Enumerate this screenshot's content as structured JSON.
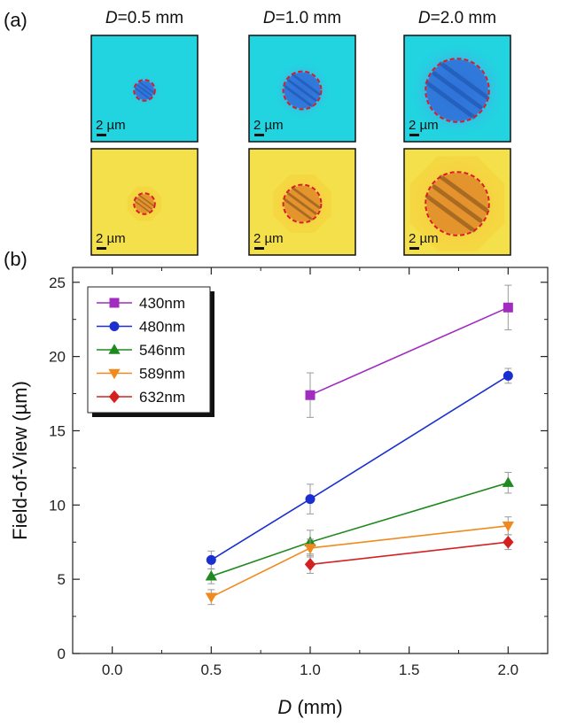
{
  "panel_a": {
    "label": "(a)",
    "columns": [
      {
        "d_italic": "D",
        "d_value": "=0.5 mm",
        "circle_fraction": 0.18
      },
      {
        "d_italic": "D",
        "d_value": "=1.0 mm",
        "circle_fraction": 0.34
      },
      {
        "d_italic": "D",
        "d_value": "=2.0 mm",
        "circle_fraction": 0.58
      }
    ],
    "scale_bar_label": "2 µm",
    "rows": [
      {
        "name": "blue",
        "background": "#22d3e0",
        "spot": "#2f6fd8"
      },
      {
        "name": "yellow",
        "background": "#f4e04a",
        "spot": "#e08a2a"
      }
    ]
  },
  "panel_b": {
    "label": "(b)"
  },
  "chart_data": {
    "type": "line",
    "xlabel_italic": "D",
    "xlabel_rest": " (mm)",
    "ylabel": "Field-of-View  (µm)",
    "xlim": [
      -0.2,
      2.2
    ],
    "ylim": [
      0,
      26
    ],
    "xticks": [
      "0.0",
      "0.5",
      "1.0",
      "1.5",
      "2.0"
    ],
    "xtick_values": [
      0.0,
      0.5,
      1.0,
      1.5,
      2.0
    ],
    "yticks": [
      "0",
      "5",
      "10",
      "15",
      "20",
      "25"
    ],
    "ytick_values": [
      0,
      5,
      10,
      15,
      20,
      25
    ],
    "legend_position": "top-left",
    "series": [
      {
        "name": "430nm",
        "color": "#a02cc0",
        "marker": "square",
        "x": [
          1.0,
          2.0
        ],
        "y": [
          17.4,
          23.3
        ],
        "err": [
          1.5,
          1.5
        ]
      },
      {
        "name": "480nm",
        "color": "#1a2fd0",
        "marker": "circle",
        "x": [
          0.5,
          1.0,
          2.0
        ],
        "y": [
          6.3,
          10.4,
          18.7
        ],
        "err": [
          0.6,
          1.0,
          0.5
        ]
      },
      {
        "name": "546nm",
        "color": "#1f8a1f",
        "marker": "triangle-up",
        "x": [
          0.5,
          1.0,
          2.0
        ],
        "y": [
          5.2,
          7.5,
          11.5
        ],
        "err": [
          0.5,
          0.8,
          0.7
        ]
      },
      {
        "name": "589nm",
        "color": "#f08a1e",
        "marker": "triangle-down",
        "x": [
          0.5,
          1.0,
          2.0
        ],
        "y": [
          3.8,
          7.1,
          8.6
        ],
        "err": [
          0.5,
          0.6,
          0.6
        ]
      },
      {
        "name": "632nm",
        "color": "#d42020",
        "marker": "diamond",
        "x": [
          1.0,
          2.0
        ],
        "y": [
          6.0,
          7.5
        ],
        "err": [
          0.6,
          0.5
        ]
      }
    ]
  }
}
